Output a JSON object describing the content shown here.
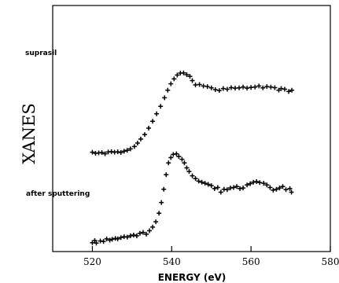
{
  "chart_data": {
    "type": "scatter",
    "title": "",
    "xlabel": "ENERGY (eV)",
    "ylabel": "XANES",
    "xlim": [
      510,
      580
    ],
    "ylim": [
      0,
      1
    ],
    "x_ticks": [
      520,
      540,
      560,
      580
    ],
    "x_tick_labels": [
      "520",
      "540",
      "560",
      "580"
    ],
    "grid": false,
    "marker": "plus",
    "series": [
      {
        "name": "suprasil",
        "label_text": "suprasil",
        "points": [
          [
            520.0,
            0.435
          ],
          [
            520.8,
            0.43
          ],
          [
            521.6,
            0.432
          ],
          [
            522.4,
            0.434
          ],
          [
            523.2,
            0.428
          ],
          [
            524.0,
            0.436
          ],
          [
            524.8,
            0.438
          ],
          [
            525.6,
            0.435
          ],
          [
            526.4,
            0.437
          ],
          [
            527.2,
            0.434
          ],
          [
            528.0,
            0.44
          ],
          [
            528.8,
            0.444
          ],
          [
            529.6,
            0.451
          ],
          [
            530.6,
            0.462
          ],
          [
            531.4,
            0.478
          ],
          [
            532.2,
            0.497
          ],
          [
            533.2,
            0.518
          ],
          [
            534.2,
            0.548
          ],
          [
            535.2,
            0.58
          ],
          [
            536.2,
            0.615
          ],
          [
            537.2,
            0.65
          ],
          [
            538.2,
            0.69
          ],
          [
            539.0,
            0.725
          ],
          [
            539.8,
            0.755
          ],
          [
            540.6,
            0.778
          ],
          [
            541.4,
            0.796
          ],
          [
            542.2,
            0.805
          ],
          [
            543.0,
            0.806
          ],
          [
            543.8,
            0.798
          ],
          [
            544.6,
            0.79
          ],
          [
            545.2,
            0.77
          ],
          [
            546.0,
            0.75
          ],
          [
            547.0,
            0.752
          ],
          [
            548.0,
            0.745
          ],
          [
            549.0,
            0.742
          ],
          [
            550.0,
            0.736
          ],
          [
            551.0,
            0.728
          ],
          [
            552.0,
            0.724
          ],
          [
            553.0,
            0.733
          ],
          [
            554.0,
            0.73
          ],
          [
            555.0,
            0.737
          ],
          [
            556.0,
            0.735
          ],
          [
            557.0,
            0.736
          ],
          [
            558.0,
            0.74
          ],
          [
            559.0,
            0.735
          ],
          [
            560.0,
            0.738
          ],
          [
            561.0,
            0.74
          ],
          [
            562.0,
            0.745
          ],
          [
            563.0,
            0.736
          ],
          [
            564.0,
            0.742
          ],
          [
            565.0,
            0.74
          ],
          [
            566.0,
            0.737
          ],
          [
            567.0,
            0.725
          ],
          [
            567.6,
            0.733
          ],
          [
            568.5,
            0.73
          ],
          [
            569.5,
            0.719
          ],
          [
            570.3,
            0.725
          ]
        ]
      },
      {
        "name": "after sputtering",
        "label_text": "after sputtering",
        "points": [
          [
            520.0,
            0.012
          ],
          [
            520.6,
            0.022
          ],
          [
            521.0,
            0.01
          ],
          [
            522.0,
            0.02
          ],
          [
            522.8,
            0.018
          ],
          [
            523.6,
            0.03
          ],
          [
            524.4,
            0.024
          ],
          [
            525.0,
            0.028
          ],
          [
            525.8,
            0.032
          ],
          [
            526.4,
            0.03
          ],
          [
            527.2,
            0.036
          ],
          [
            528.0,
            0.04
          ],
          [
            528.8,
            0.038
          ],
          [
            529.6,
            0.044
          ],
          [
            530.4,
            0.048
          ],
          [
            531.2,
            0.044
          ],
          [
            532.0,
            0.056
          ],
          [
            532.8,
            0.06
          ],
          [
            533.6,
            0.052
          ],
          [
            534.4,
            0.068
          ],
          [
            535.2,
            0.085
          ],
          [
            536.0,
            0.11
          ],
          [
            536.8,
            0.15
          ],
          [
            537.4,
            0.2
          ],
          [
            538.0,
            0.262
          ],
          [
            538.6,
            0.33
          ],
          [
            539.2,
            0.385
          ],
          [
            539.8,
            0.41
          ],
          [
            540.4,
            0.425
          ],
          [
            541.2,
            0.428
          ],
          [
            541.8,
            0.415
          ],
          [
            542.6,
            0.402
          ],
          [
            543.2,
            0.385
          ],
          [
            543.8,
            0.362
          ],
          [
            544.4,
            0.345
          ],
          [
            545.2,
            0.325
          ],
          [
            546.0,
            0.312
          ],
          [
            546.8,
            0.3
          ],
          [
            547.6,
            0.295
          ],
          [
            548.4,
            0.29
          ],
          [
            549.2,
            0.285
          ],
          [
            550.0,
            0.279
          ],
          [
            550.8,
            0.265
          ],
          [
            551.6,
            0.27
          ],
          [
            552.4,
            0.248
          ],
          [
            553.2,
            0.262
          ],
          [
            554.0,
            0.26
          ],
          [
            554.8,
            0.268
          ],
          [
            555.6,
            0.27
          ],
          [
            556.4,
            0.275
          ],
          [
            557.2,
            0.265
          ],
          [
            558.0,
            0.268
          ],
          [
            559.0,
            0.282
          ],
          [
            559.8,
            0.288
          ],
          [
            560.6,
            0.295
          ],
          [
            561.4,
            0.298
          ],
          [
            562.2,
            0.293
          ],
          [
            563.2,
            0.29
          ],
          [
            564.0,
            0.282
          ],
          [
            564.8,
            0.27
          ],
          [
            565.6,
            0.258
          ],
          [
            566.4,
            0.262
          ],
          [
            567.2,
            0.268
          ],
          [
            568.0,
            0.275
          ],
          [
            568.8,
            0.26
          ],
          [
            569.8,
            0.265
          ],
          [
            570.2,
            0.248
          ]
        ]
      }
    ]
  }
}
